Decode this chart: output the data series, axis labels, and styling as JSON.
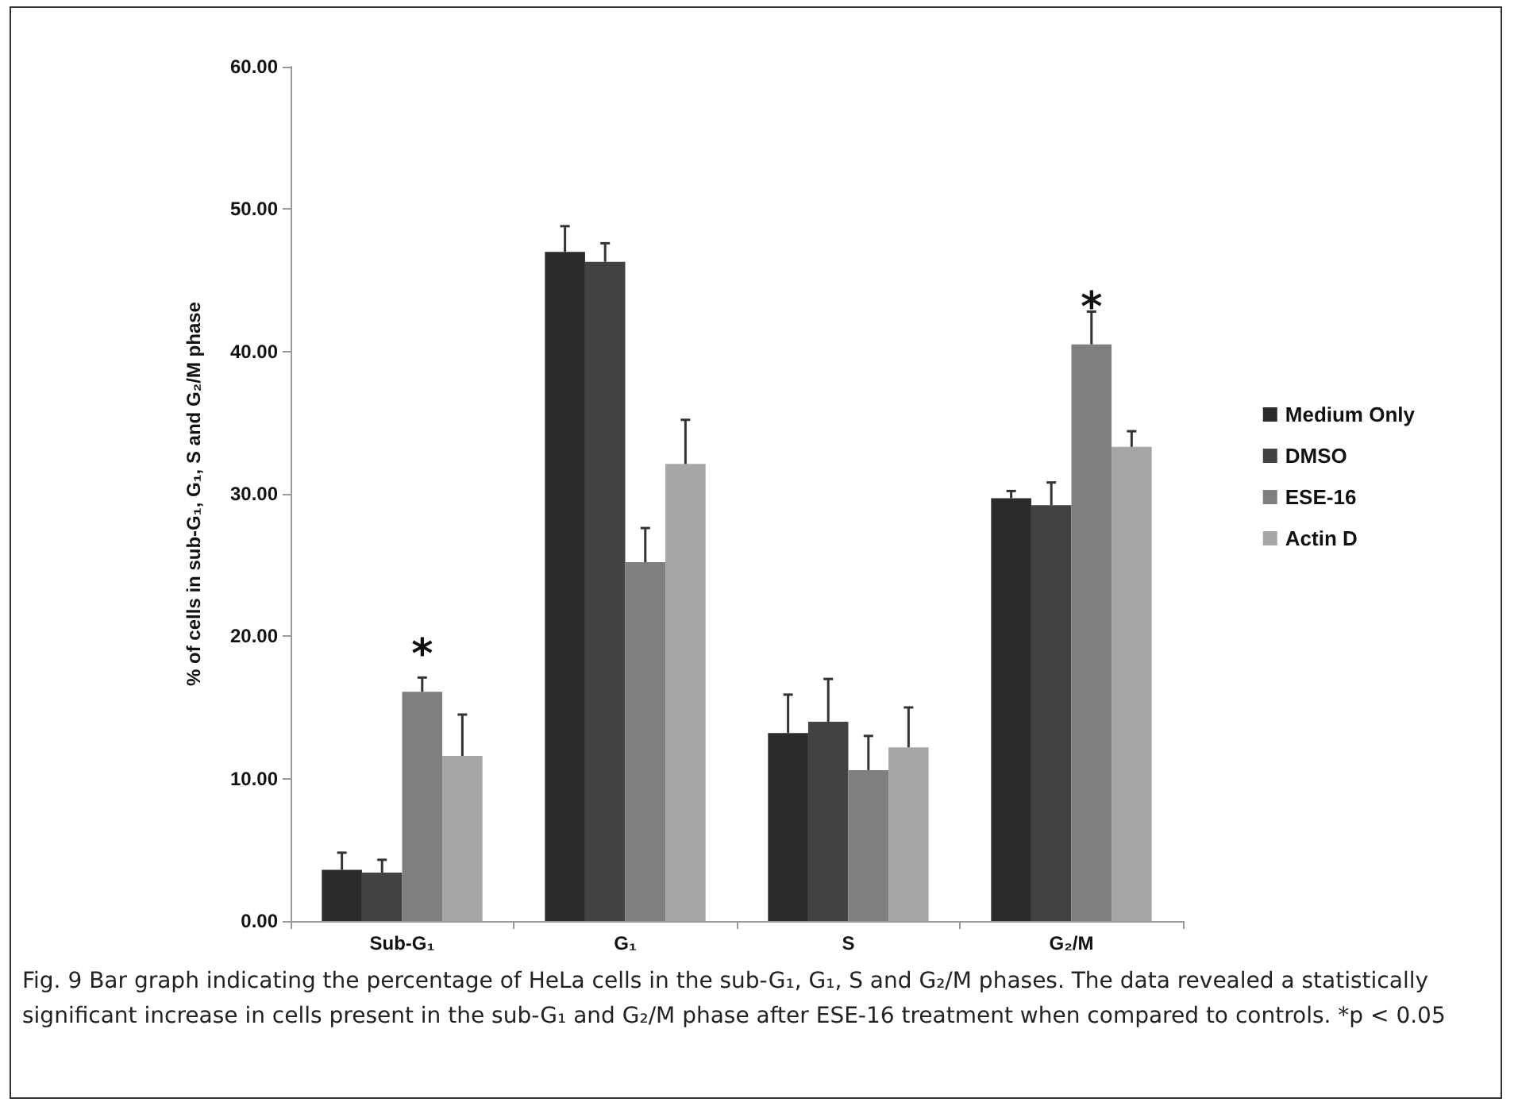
{
  "chart_data": {
    "type": "bar",
    "ylabel": "% of cells in sub-G₁, G₁, S and G₂/M phase",
    "categories": [
      "Sub-G₁",
      "G₁",
      "S",
      "G₂/M"
    ],
    "series": [
      {
        "name": "Medium Only",
        "color": "#2b2b2b",
        "values": [
          3.6,
          47.0,
          13.2,
          29.7
        ],
        "errors": [
          [
            3.6,
            4.8
          ],
          [
            47.0,
            48.8
          ],
          [
            13.2,
            15.9
          ],
          [
            29.7,
            30.2
          ]
        ]
      },
      {
        "name": "DMSO",
        "color": "#424242",
        "values": [
          3.4,
          46.3,
          14.0,
          29.2
        ],
        "errors": [
          [
            3.4,
            4.3
          ],
          [
            46.3,
            47.6
          ],
          [
            14.0,
            17.0
          ],
          [
            29.2,
            30.8
          ]
        ]
      },
      {
        "name": "ESE-16",
        "color": "#7f7f7f",
        "values": [
          16.1,
          25.2,
          10.6,
          40.5
        ],
        "errors": [
          [
            16.1,
            17.1
          ],
          [
            25.2,
            27.6
          ],
          [
            10.6,
            13.0
          ],
          [
            40.5,
            42.8
          ]
        ],
        "value_labels": [
          "*",
          null,
          null,
          "*"
        ]
      },
      {
        "name": "Actin D",
        "color": "#a6a6a6",
        "values": [
          11.6,
          32.1,
          12.2,
          33.3
        ],
        "errors": [
          [
            11.6,
            14.5
          ],
          [
            32.1,
            35.2
          ],
          [
            12.2,
            15.0
          ],
          [
            33.3,
            34.4
          ]
        ]
      }
    ],
    "ylim": [
      0,
      60
    ],
    "yticks": [
      {
        "value": 0,
        "label": "0.00"
      },
      {
        "value": 10,
        "label": "10.00"
      },
      {
        "value": 20,
        "label": "20.00"
      },
      {
        "value": 30,
        "label": "30.00"
      },
      {
        "value": 40,
        "label": "40.00"
      },
      {
        "value": 50,
        "label": "50.00"
      },
      {
        "value": 60,
        "label": "60.00"
      }
    ],
    "grid": false,
    "legend": "right",
    "annotations": [
      "Fig. 9 Bar graph indicating the percentage of HeLa cells in the sub-G₁, G₁, S and G₂/M phases. The data revealed a statistically significant increase in cells present in the sub-G₁ and G₂/M phase after ESE-16 treatment when compared to controls. *p < 0.05"
    ]
  }
}
